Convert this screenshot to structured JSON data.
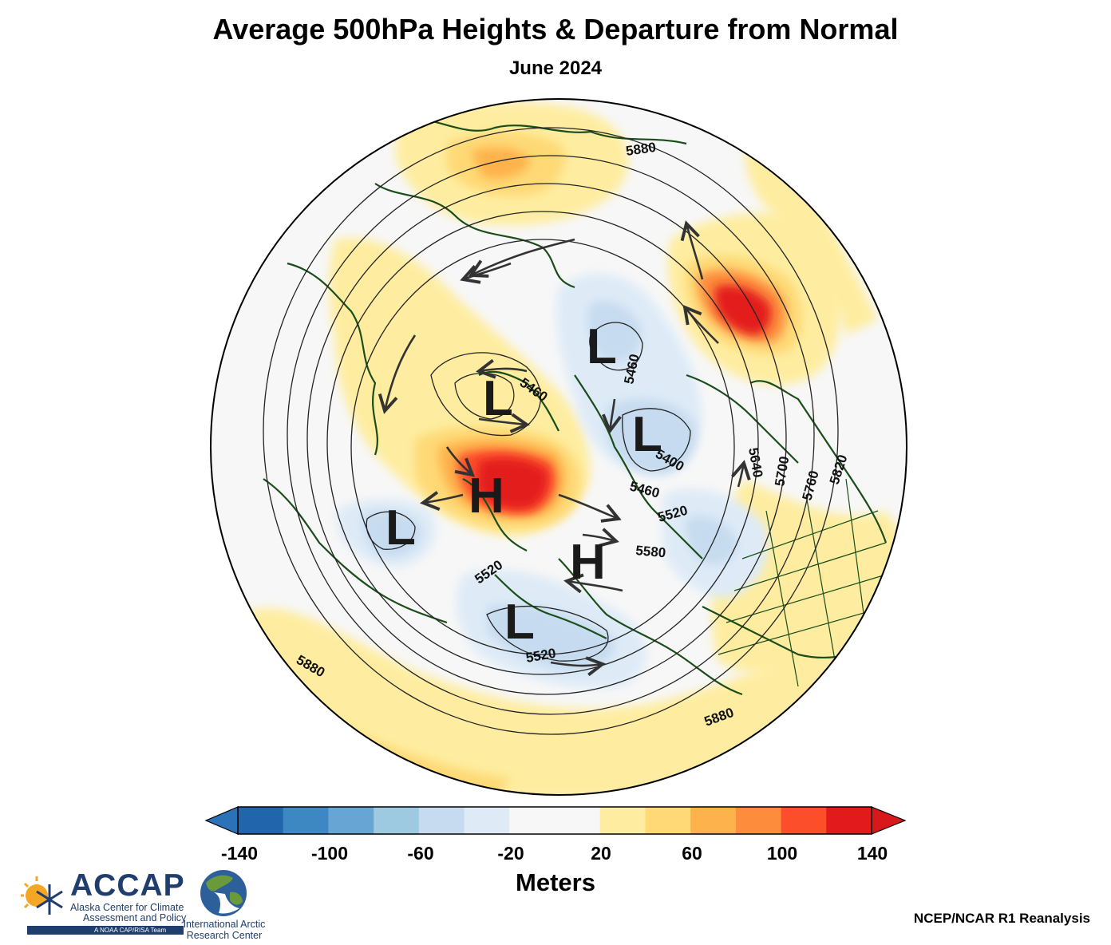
{
  "title": "Average 500hPa Heights & Departure from Normal",
  "subtitle": "June 2024",
  "legend": {
    "label": "Meters",
    "ticks": [
      "-140",
      "-100",
      "-60",
      "-20",
      "20",
      "60",
      "100",
      "140"
    ],
    "colors": [
      "#2166ac",
      "#3d88c2",
      "#67a6d4",
      "#9ecae1",
      "#c6dbef",
      "#deebf7",
      "#f7f7f7",
      "#f7f7f7",
      "#feeda0",
      "#fed976",
      "#feb24c",
      "#fd8d3c",
      "#fc4e2a",
      "#e31a1c"
    ],
    "extend_low_color": "#2b72b8",
    "extend_high_color": "#d7191c"
  },
  "map": {
    "projection": "north-polar-stereographic",
    "contour_labels": [
      "5880",
      "5880",
      "5880",
      "5460",
      "5460",
      "5400",
      "5460",
      "5520",
      "5580",
      "5520",
      "5520",
      "5640",
      "5700",
      "5760",
      "5820"
    ],
    "pressure_centers": [
      "L",
      "L",
      "L",
      "L",
      "L",
      "H",
      "H"
    ]
  },
  "source": "NCEP/NCAR R1 Reanalysis",
  "logos": {
    "accap_name": "ACCAP",
    "accap_line1": "Alaska Center for Climate",
    "accap_line2": "Assessment and Policy",
    "accap_tag": "A NOAA CAP/RISA Team",
    "iarc_line1": "International Arctic",
    "iarc_line2": "Research Center"
  }
}
